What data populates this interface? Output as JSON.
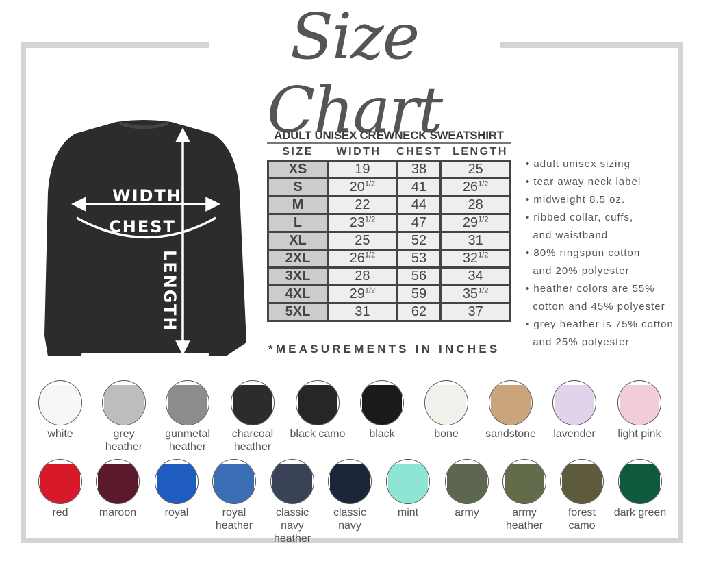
{
  "title": "Size Chart",
  "diagram_labels": {
    "width": "WIDTH",
    "chest": "CHEST",
    "length": "LENGTH"
  },
  "table": {
    "title": "ADULT UNISEX CREWNECK SWEATSHIRT",
    "headers": [
      "SIZE",
      "WIDTH",
      "CHEST",
      "LENGTH"
    ],
    "rows": [
      [
        "XS",
        "19",
        "38",
        "25"
      ],
      [
        "S",
        "20½",
        "41",
        "26½"
      ],
      [
        "M",
        "22",
        "44",
        "28"
      ],
      [
        "L",
        "23½",
        "47",
        "29½"
      ],
      [
        "XL",
        "25",
        "52",
        "31"
      ],
      [
        "2XL",
        "26½",
        "53",
        "32½"
      ],
      [
        "3XL",
        "28",
        "56",
        "34"
      ],
      [
        "4XL",
        "29½",
        "59",
        "35½"
      ],
      [
        "5XL",
        "31",
        "62",
        "37"
      ]
    ],
    "note": "*MEASUREMENTS IN INCHES"
  },
  "features": [
    "• adult unisex sizing",
    "• tear away neck label",
    "• midweight 8.5 oz.",
    "• ribbed collar, cuffs,",
    "  and waistband",
    "• 80% ringspun cotton",
    "  and 20% polyester",
    "• heather colors are 55%",
    "  cotton and 45% polyester",
    "• grey heather is 75% cotton",
    "  and 25% polyester"
  ],
  "colors_row1": [
    {
      "label": "white",
      "color": "#f7f7f7"
    },
    {
      "label": "grey heather",
      "color": "#bdbdbd"
    },
    {
      "label": "gunmetal heather",
      "color": "#8a8c8e"
    },
    {
      "label": "charcoal heather",
      "color": "#2b2d2b"
    },
    {
      "label": "black camo",
      "color": "#262626"
    },
    {
      "label": "black",
      "color": "#1a1a1a"
    },
    {
      "label": "bone",
      "color": "#f3f1ec"
    },
    {
      "label": "sandstone",
      "color": "#caa57c"
    },
    {
      "label": "lavender",
      "color": "#e1d3ec"
    },
    {
      "label": "light pink",
      "color": "#f2cdd7"
    }
  ],
  "colors_row2": [
    {
      "label": "red",
      "color": "#d7192a"
    },
    {
      "label": "maroon",
      "color": "#5a1a2c"
    },
    {
      "label": "royal",
      "color": "#1f5cbf"
    },
    {
      "label": "royal heather",
      "color": "#3a6db3"
    },
    {
      "label": "classic navy heather",
      "color": "#3a4257"
    },
    {
      "label": "classic navy",
      "color": "#1b2439"
    },
    {
      "label": "mint",
      "color": "#8de6d4"
    },
    {
      "label": "army",
      "color": "#5c6650"
    },
    {
      "label": "army heather",
      "color": "#626b4a"
    },
    {
      "label": "forest camo",
      "color": "#5d5a3e"
    },
    {
      "label": "dark green",
      "color": "#0f5a3c"
    }
  ]
}
